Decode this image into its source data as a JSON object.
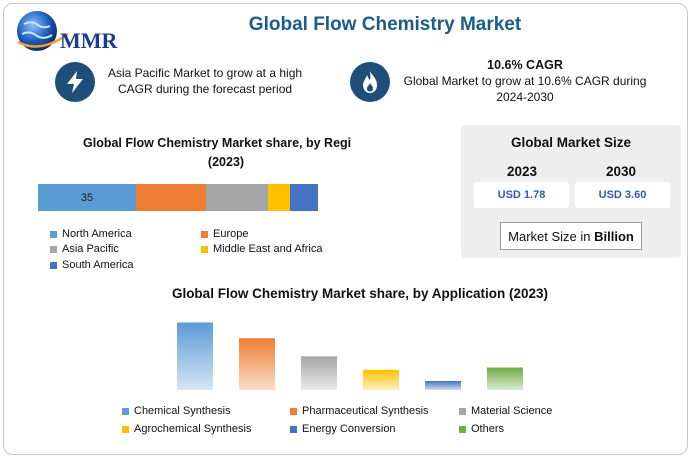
{
  "header": {
    "logo_text": "MMR",
    "title": "Global Flow Chemistry Market"
  },
  "highlights": [
    {
      "icon": "lightning-icon",
      "lines": [
        "Asia Pacific Market to grow at a high",
        "CAGR during the forecast period"
      ]
    },
    {
      "icon": "flame-icon",
      "heading": "10.6% CAGR",
      "lines": [
        "Global Market to grow at 10.6% CAGR during",
        "2024-2030"
      ]
    }
  ],
  "market_size": {
    "title": "Global Market Size",
    "year_a": "2023",
    "year_b": "2030",
    "value_a": "USD 1.78",
    "value_b": "USD 3.60",
    "unit_text": "Market Size in ",
    "unit_bold": "Billion"
  },
  "chart_data": [
    {
      "type": "bar",
      "orientation": "horizontal-stacked",
      "title_line1": "Global Flow Chemistry Market share, by Regi",
      "title_line2": "(2023)",
      "categories": [
        "North America",
        "Europe",
        "Asia Pacific",
        "Middle East and Africa",
        "South America"
      ],
      "colors": [
        "#5b9bd5",
        "#ed7d31",
        "#a5a5a5",
        "#ffc000",
        "#4472c4"
      ],
      "values": [
        35,
        25,
        22,
        8,
        10
      ],
      "data_labels": [
        "35",
        "",
        "",
        "",
        ""
      ]
    },
    {
      "type": "bar",
      "title": "Global Flow Chemistry Market share, by Application (2023)",
      "categories": [
        "Chemical Synthesis",
        "Pharmaceutical Synthesis",
        "Material Science",
        "Agrochemical Synthesis",
        "Energy Conversion",
        "Others"
      ],
      "colors": [
        "#5b9bd5",
        "#ed7d31",
        "#a5a5a5",
        "#ffc000",
        "#4472c4",
        "#70ad47"
      ],
      "values": [
        30,
        23,
        15,
        9,
        4,
        10
      ],
      "ylim": [
        0,
        32
      ]
    }
  ]
}
